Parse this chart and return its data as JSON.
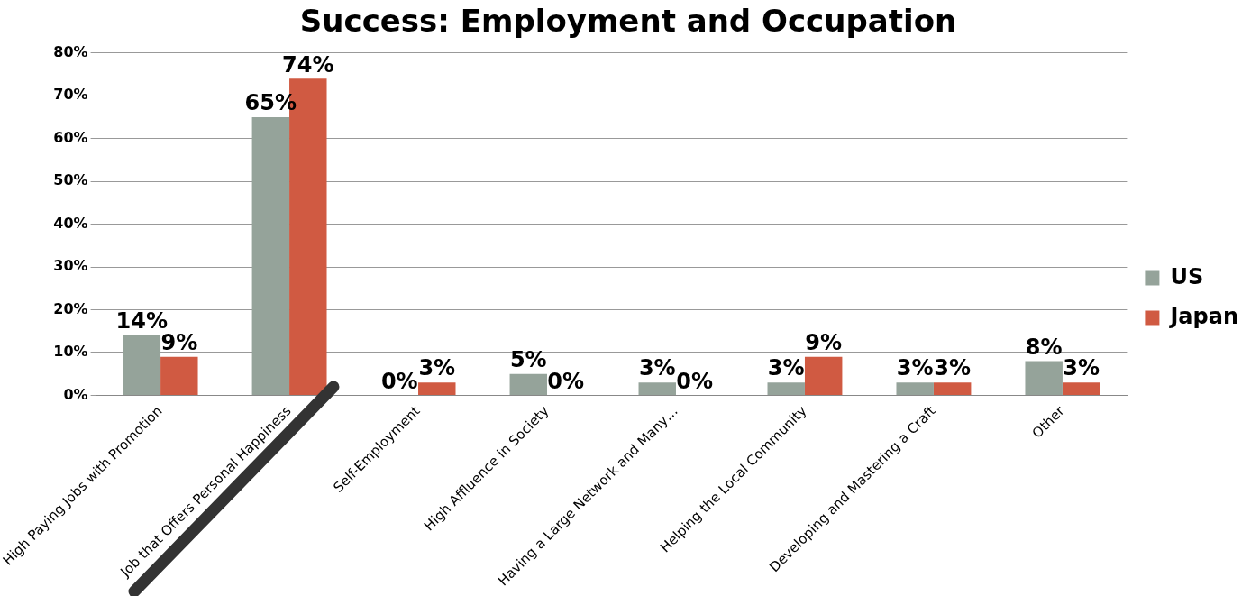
{
  "chart_data": {
    "type": "bar",
    "title": "Success: Employment and Occupation",
    "categories": [
      "High Paying Jobs with Promotion",
      "Job that Offers Personal Happiness",
      "Self-Employment",
      "High Affluence in Society",
      "Having a Large Network and Many…",
      "Helping the Local Community",
      "Developing and Mastering a Craft",
      "Other"
    ],
    "series": [
      {
        "name": "US",
        "color": "#95a39a",
        "values": [
          14,
          65,
          0,
          5,
          3,
          3,
          3,
          8
        ],
        "value_labels": [
          "14%",
          "65%",
          "0%",
          "5%",
          "3%",
          "3%",
          "3%",
          "8%"
        ]
      },
      {
        "name": "Japan",
        "color": "#d05a42",
        "values": [
          9,
          74,
          3,
          0,
          0,
          9,
          3,
          3
        ],
        "value_labels": [
          "9%",
          "74%",
          "3%",
          "0%",
          "0%",
          "9%",
          "3%",
          "3%"
        ]
      }
    ],
    "ylim": [
      0,
      80
    ],
    "yticks": [
      {
        "value": 0,
        "label": "0%"
      },
      {
        "value": 10,
        "label": "10%"
      },
      {
        "value": 20,
        "label": "20%"
      },
      {
        "value": 30,
        "label": "30%"
      },
      {
        "value": 40,
        "label": "40%"
      },
      {
        "value": 50,
        "label": "50%"
      },
      {
        "value": 60,
        "label": "60%"
      },
      {
        "value": 70,
        "label": "70%"
      },
      {
        "value": 80,
        "label": "80%"
      }
    ],
    "grid": "y",
    "legend": "right"
  }
}
